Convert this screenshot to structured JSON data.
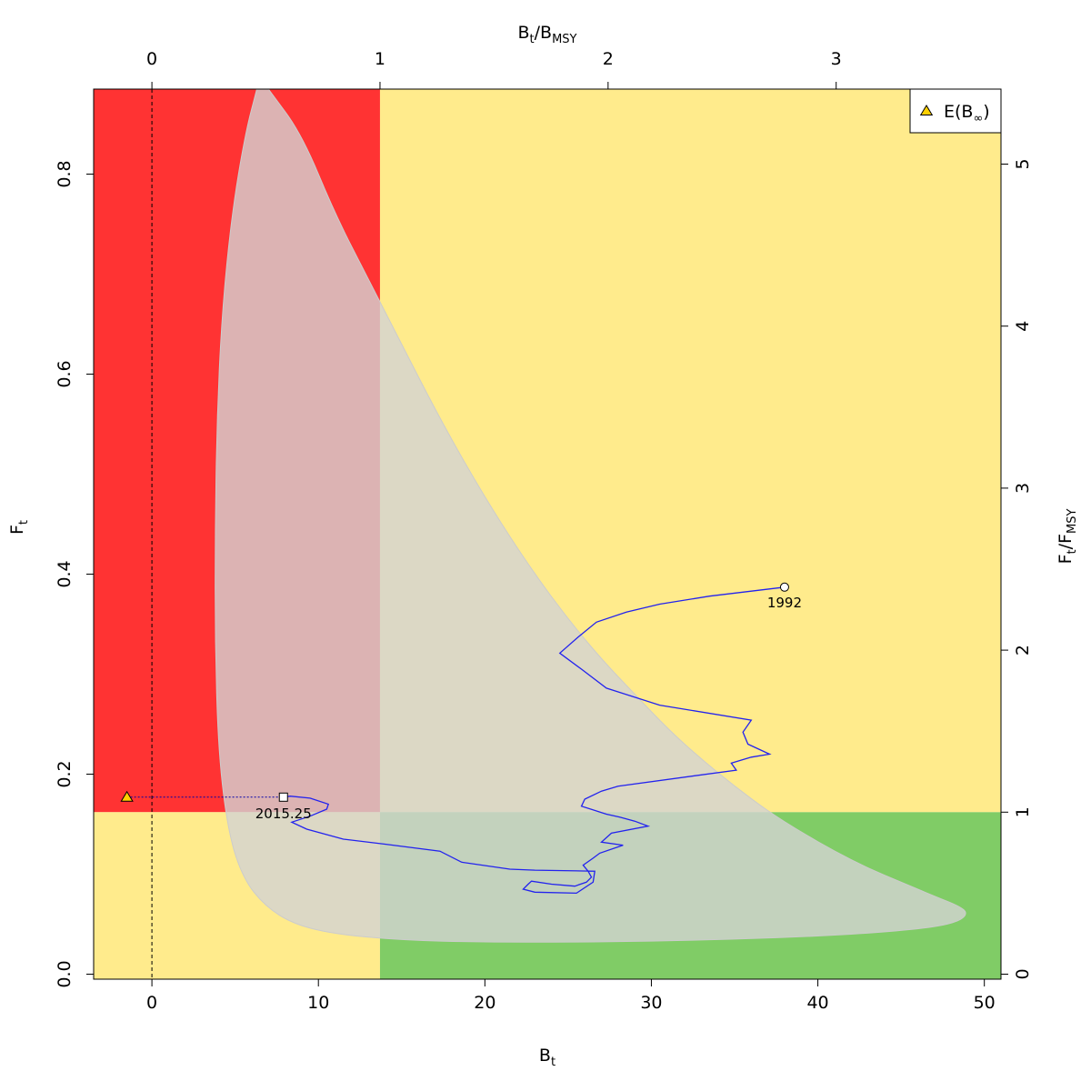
{
  "chart_data": {
    "type": "scatter",
    "title": "",
    "axes": {
      "x_bottom": {
        "label_main": "B",
        "label_sub": "t",
        "range": [
          -3.5,
          51.0
        ],
        "ticks": [
          0,
          10,
          20,
          30,
          40,
          50
        ]
      },
      "y_left": {
        "label_main": "F",
        "label_sub": "t",
        "range": [
          -0.005,
          0.885
        ],
        "ticks": [
          "0.0",
          "0.2",
          "0.4",
          "0.6",
          "0.8"
        ]
      },
      "x_top": {
        "label_main": "B",
        "label_sub": "t",
        "label_den_main": "B",
        "label_den_sub": "MSY",
        "ticks": [
          "0",
          "1",
          "2",
          "3"
        ],
        "bmsy": 13.7
      },
      "y_right": {
        "label_main": "F",
        "label_sub": "t",
        "label_den_main": "F",
        "label_den_sub": "MSY",
        "ticks": [
          "0",
          "1",
          "2",
          "3",
          "4",
          "5"
        ],
        "fmsy": 0.162
      }
    },
    "zones": {
      "overfished_overfishing": "#FF3333",
      "single_problem": "#FFEB8C",
      "healthy": "#80CC66",
      "ellipse_fill": "#D3D3D3"
    },
    "ellipse": {
      "points": [
        [
          7.0,
          0.885
        ],
        [
          9.0,
          0.84
        ],
        [
          11.0,
          0.76
        ],
        [
          13.0,
          0.695
        ],
        [
          15.0,
          0.63
        ],
        [
          17.0,
          0.565
        ],
        [
          19.0,
          0.505
        ],
        [
          21.0,
          0.45
        ],
        [
          23.0,
          0.4
        ],
        [
          25.0,
          0.355
        ],
        [
          27.0,
          0.315
        ],
        [
          29.0,
          0.28
        ],
        [
          31.0,
          0.245
        ],
        [
          33.0,
          0.215
        ],
        [
          35.0,
          0.188
        ],
        [
          37.0,
          0.163
        ],
        [
          39.0,
          0.142
        ],
        [
          41.0,
          0.123
        ],
        [
          43.0,
          0.106
        ],
        [
          45.0,
          0.092
        ],
        [
          47.0,
          0.078
        ],
        [
          48.5,
          0.068
        ],
        [
          49.0,
          0.061
        ],
        [
          48.5,
          0.053
        ],
        [
          47.0,
          0.047
        ],
        [
          44.0,
          0.042
        ],
        [
          40.0,
          0.038
        ],
        [
          35.0,
          0.035
        ],
        [
          30.0,
          0.033
        ],
        [
          25.0,
          0.032
        ],
        [
          20.0,
          0.032
        ],
        [
          15.0,
          0.034
        ],
        [
          11.0,
          0.04
        ],
        [
          8.5,
          0.05
        ],
        [
          6.8,
          0.068
        ],
        [
          5.5,
          0.095
        ],
        [
          4.6,
          0.14
        ],
        [
          4.0,
          0.22
        ],
        [
          3.8,
          0.33
        ],
        [
          3.8,
          0.44
        ],
        [
          3.9,
          0.55
        ],
        [
          4.2,
          0.66
        ],
        [
          4.8,
          0.76
        ],
        [
          5.6,
          0.84
        ],
        [
          6.3,
          0.885
        ]
      ]
    },
    "trajectory": {
      "color": "#2222EE",
      "start_label": "1992",
      "end_label": "2015.25",
      "points": [
        [
          38.0,
          0.387
        ],
        [
          33.5,
          0.378
        ],
        [
          30.5,
          0.37
        ],
        [
          28.5,
          0.362
        ],
        [
          26.7,
          0.352
        ],
        [
          25.6,
          0.337
        ],
        [
          24.5,
          0.321
        ],
        [
          25.8,
          0.305
        ],
        [
          27.3,
          0.286
        ],
        [
          30.5,
          0.269
        ],
        [
          36.0,
          0.254
        ],
        [
          35.5,
          0.242
        ],
        [
          35.8,
          0.23
        ],
        [
          37.1,
          0.22
        ],
        [
          36.0,
          0.217
        ],
        [
          34.8,
          0.211
        ],
        [
          35.1,
          0.204
        ],
        [
          28.0,
          0.188
        ],
        [
          27.0,
          0.183
        ],
        [
          26.0,
          0.175
        ],
        [
          25.8,
          0.168
        ],
        [
          27.3,
          0.16
        ],
        [
          28.1,
          0.157
        ],
        [
          29.0,
          0.153
        ],
        [
          29.8,
          0.148
        ],
        [
          27.6,
          0.141
        ],
        [
          27.0,
          0.132
        ],
        [
          28.3,
          0.129
        ],
        [
          26.9,
          0.121
        ],
        [
          26.5,
          0.116
        ],
        [
          25.9,
          0.109
        ],
        [
          26.2,
          0.103
        ],
        [
          26.4,
          0.097
        ],
        [
          26.1,
          0.092
        ],
        [
          25.4,
          0.088
        ],
        [
          24.0,
          0.09
        ],
        [
          22.8,
          0.093
        ],
        [
          22.6,
          0.09
        ],
        [
          22.3,
          0.085
        ],
        [
          23.0,
          0.082
        ],
        [
          25.5,
          0.081
        ],
        [
          26.5,
          0.092
        ],
        [
          26.6,
          0.103
        ],
        [
          23.0,
          0.104
        ],
        [
          21.5,
          0.105
        ],
        [
          18.6,
          0.112
        ],
        [
          17.3,
          0.123
        ],
        [
          14.0,
          0.13
        ],
        [
          11.5,
          0.135
        ],
        [
          9.3,
          0.145
        ],
        [
          8.4,
          0.152
        ],
        [
          9.5,
          0.158
        ],
        [
          10.5,
          0.165
        ],
        [
          10.6,
          0.17
        ],
        [
          9.5,
          0.176
        ],
        [
          8.3,
          0.178
        ],
        [
          7.9,
          0.177
        ]
      ]
    },
    "e_binf": {
      "x": -1.5,
      "y": 0.177,
      "color": "#FFD000",
      "legend_label": "E(B",
      "legend_sub": "∞",
      "legend_close": ")"
    },
    "legend_position": "top-right"
  }
}
